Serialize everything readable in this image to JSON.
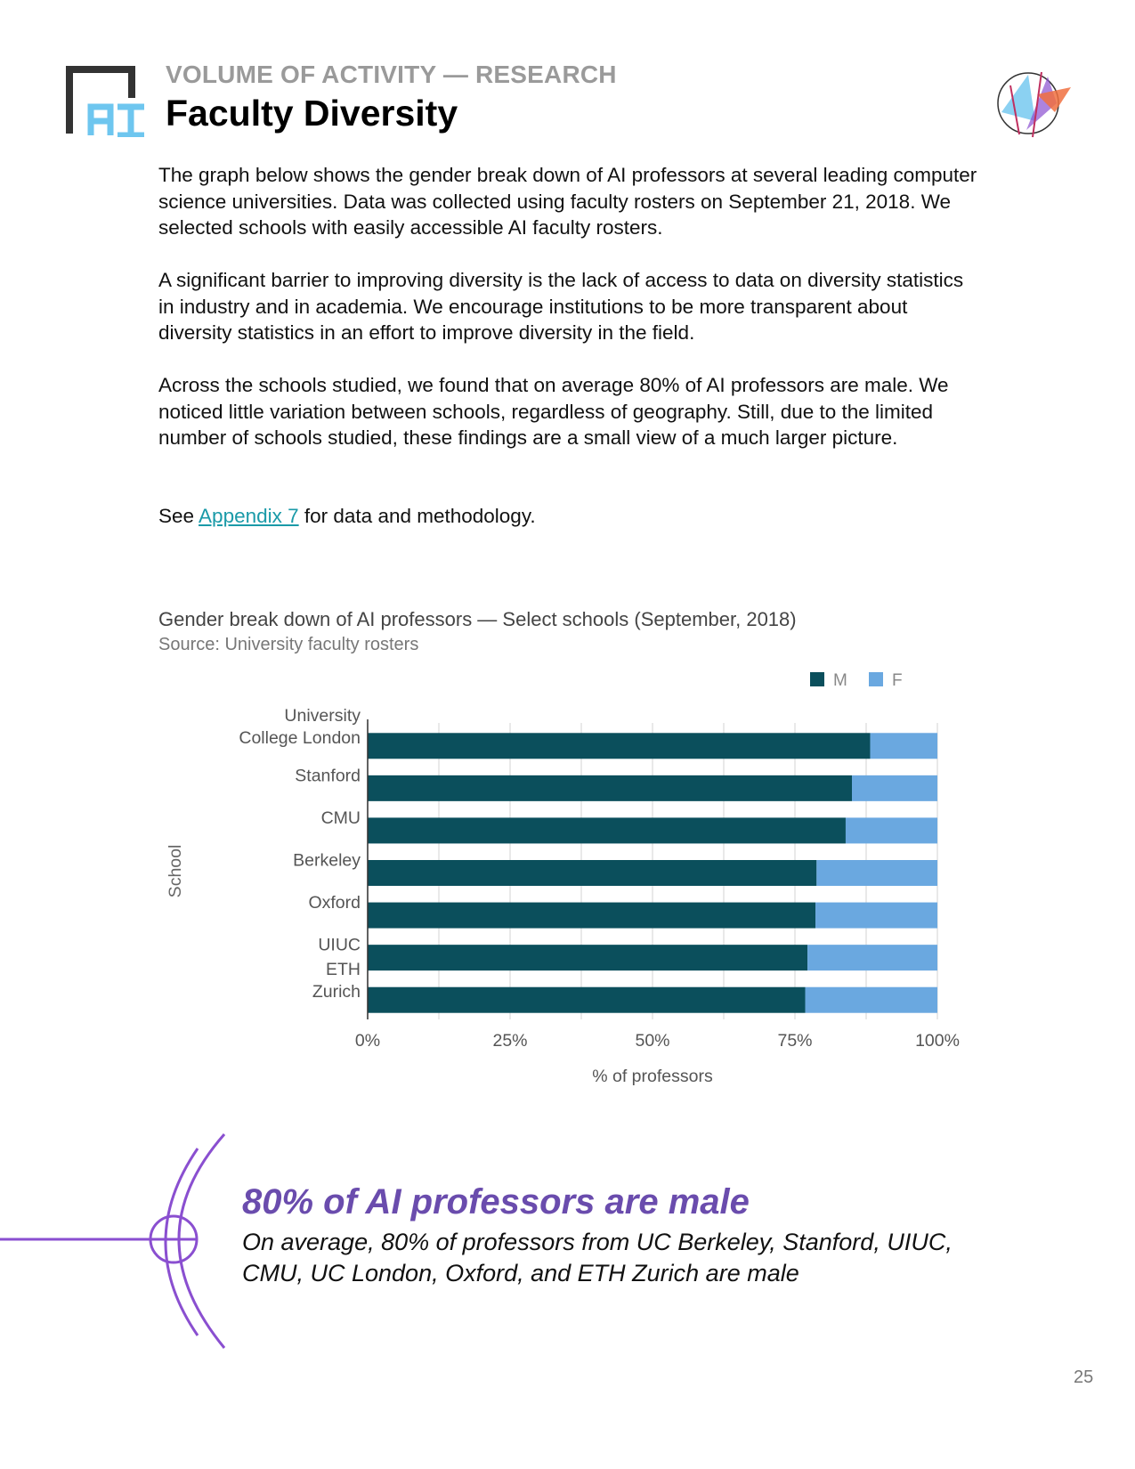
{
  "header": {
    "kicker": "VOLUME OF ACTIVITY — RESEARCH",
    "title": "Faculty Diversity",
    "logo_text": "AI"
  },
  "body": {
    "p1": "The graph below shows the gender break down of AI professors at several leading computer science universities. Data was collected using faculty rosters on September 21, 2018. We selected schools with easily accessible AI faculty rosters.",
    "p2": "A significant barrier to improving diversity is the lack of access to data on diversity statistics in industry and in academia. We encourage institutions to be more transparent about diversity statistics in an effort to improve diversity in the field.",
    "p3": "Across the schools studied, we found that on average 80% of AI professors are male. We noticed little variation between schools, regardless of geography. Still, due to the limited number of schools studied, these findings are a small view of a much larger picture.",
    "p4_before": "See ",
    "p4_link": "Appendix 7",
    "p4_after": " for data and methodology."
  },
  "chart_data": {
    "type": "bar",
    "orientation": "horizontal",
    "stacked": true,
    "title": "Gender break down of AI professors — Select schools (September, 2018)",
    "subtitle": "Source: University faculty rosters",
    "xlabel": "% of professors",
    "ylabel": "School",
    "xlim": [
      0,
      100
    ],
    "xticks": [
      "0%",
      "25%",
      "50%",
      "75%",
      "100%"
    ],
    "grid": true,
    "legend_placement": "top-right",
    "categories": [
      [
        "University",
        "College London"
      ],
      [
        "Stanford"
      ],
      [
        "CMU"
      ],
      [
        "Berkeley"
      ],
      [
        "Oxford"
      ],
      [
        "UIUC"
      ],
      [
        "ETH",
        "Zurich"
      ]
    ],
    "series": [
      {
        "name": "M",
        "color": "#0b4f5c",
        "values": [
          88.2,
          85.0,
          83.9,
          78.8,
          78.6,
          77.2,
          76.8
        ]
      },
      {
        "name": "F",
        "color": "#6aa8e0",
        "values": [
          11.8,
          15.0,
          16.1,
          21.2,
          21.4,
          22.8,
          23.2
        ]
      }
    ]
  },
  "callout": {
    "heading": "80% of AI professors are male",
    "text": "On average, 80% of professors from UC Berkeley, Stanford, UIUC, CMU, UC London, Oxford, and ETH Zurich are male",
    "accent": "#8a4fd0"
  },
  "footer": {
    "page_number": "25"
  }
}
